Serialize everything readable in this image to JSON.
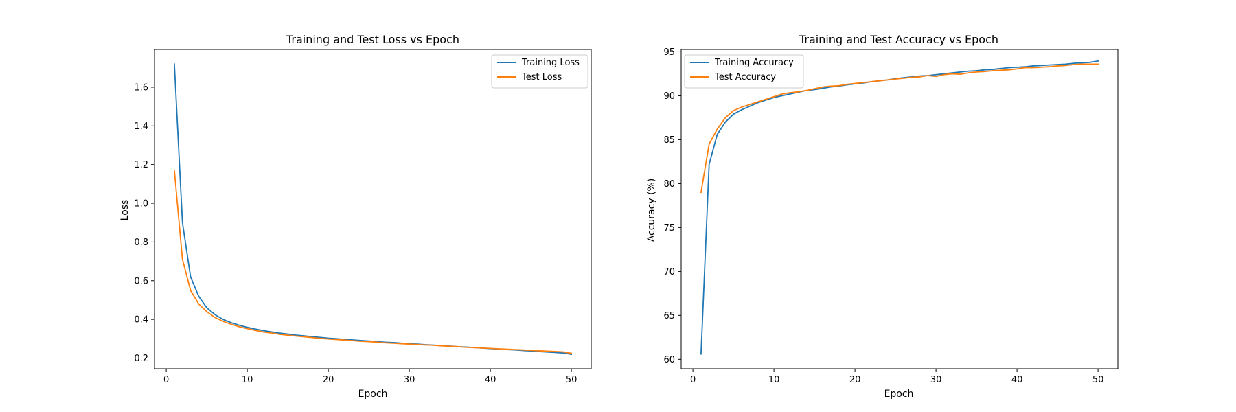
{
  "chart_data": [
    {
      "type": "line",
      "title": "Training and Test Loss vs Epoch",
      "xlabel": "Epoch",
      "ylabel": "Loss",
      "xlim": [
        -1.45,
        52.45
      ],
      "ylim": [
        0.145,
        1.795
      ],
      "xticks": [
        0,
        10,
        20,
        30,
        40,
        50
      ],
      "yticks": [
        0.2,
        0.4,
        0.6,
        0.8,
        1.0,
        1.2,
        1.4,
        1.6
      ],
      "ytick_labels": [
        "0.2",
        "0.4",
        "0.6",
        "0.8",
        "1.0",
        "1.2",
        "1.4",
        "1.6"
      ],
      "legend_loc": "upper right",
      "grid": false,
      "series": [
        {
          "name": "Training Loss",
          "color": "#1f77b4",
          "x": [
            1,
            2,
            3,
            4,
            5,
            6,
            7,
            8,
            9,
            10,
            11,
            12,
            13,
            14,
            15,
            16,
            17,
            18,
            19,
            20,
            21,
            22,
            23,
            24,
            25,
            26,
            27,
            28,
            29,
            30,
            31,
            32,
            33,
            34,
            35,
            36,
            37,
            38,
            39,
            40,
            41,
            42,
            43,
            44,
            45,
            46,
            47,
            48,
            49,
            50
          ],
          "y": [
            1.72,
            0.9,
            0.62,
            0.52,
            0.46,
            0.425,
            0.4,
            0.383,
            0.37,
            0.359,
            0.35,
            0.342,
            0.335,
            0.329,
            0.324,
            0.319,
            0.315,
            0.311,
            0.307,
            0.303,
            0.3,
            0.297,
            0.294,
            0.291,
            0.288,
            0.285,
            0.282,
            0.28,
            0.277,
            0.274,
            0.272,
            0.269,
            0.267,
            0.264,
            0.262,
            0.259,
            0.257,
            0.254,
            0.252,
            0.249,
            0.247,
            0.244,
            0.242,
            0.239,
            0.237,
            0.234,
            0.231,
            0.229,
            0.226,
            0.219
          ]
        },
        {
          "name": "Test Loss",
          "color": "#ff7f0e",
          "x": [
            1,
            2,
            3,
            4,
            5,
            6,
            7,
            8,
            9,
            10,
            11,
            12,
            13,
            14,
            15,
            16,
            17,
            18,
            19,
            20,
            21,
            22,
            23,
            24,
            25,
            26,
            27,
            28,
            29,
            30,
            31,
            32,
            33,
            34,
            35,
            36,
            37,
            38,
            39,
            40,
            41,
            42,
            43,
            44,
            45,
            46,
            47,
            48,
            49,
            50
          ],
          "y": [
            1.17,
            0.71,
            0.55,
            0.48,
            0.44,
            0.41,
            0.39,
            0.375,
            0.362,
            0.352,
            0.343,
            0.335,
            0.329,
            0.323,
            0.318,
            0.314,
            0.31,
            0.306,
            0.302,
            0.299,
            0.296,
            0.293,
            0.29,
            0.287,
            0.285,
            0.282,
            0.279,
            0.277,
            0.274,
            0.272,
            0.27,
            0.268,
            0.266,
            0.263,
            0.261,
            0.259,
            0.256,
            0.254,
            0.252,
            0.25,
            0.248,
            0.246,
            0.244,
            0.242,
            0.24,
            0.238,
            0.236,
            0.234,
            0.232,
            0.225
          ]
        }
      ]
    },
    {
      "type": "line",
      "title": "Training and Test Accuracy vs Epoch",
      "xlabel": "Epoch",
      "ylabel": "Accuracy (%)",
      "xlim": [
        -1.45,
        52.45
      ],
      "ylim": [
        58.93,
        95.27
      ],
      "xticks": [
        0,
        10,
        20,
        30,
        40,
        50
      ],
      "yticks": [
        60,
        65,
        70,
        75,
        80,
        85,
        90,
        95
      ],
      "ytick_labels": [
        "60",
        "65",
        "70",
        "75",
        "80",
        "85",
        "90",
        "95"
      ],
      "legend_loc": "upper left",
      "grid": false,
      "series": [
        {
          "name": "Training Accuracy",
          "color": "#1f77b4",
          "x": [
            1,
            2,
            3,
            4,
            5,
            6,
            7,
            8,
            9,
            10,
            11,
            12,
            13,
            14,
            15,
            16,
            17,
            18,
            19,
            20,
            21,
            22,
            23,
            24,
            25,
            26,
            27,
            28,
            29,
            30,
            31,
            32,
            33,
            34,
            35,
            36,
            37,
            38,
            39,
            40,
            41,
            42,
            43,
            44,
            45,
            46,
            47,
            48,
            49,
            50
          ],
          "y": [
            60.6,
            82.2,
            85.6,
            87.0,
            87.9,
            88.4,
            88.8,
            89.2,
            89.5,
            89.8,
            90.0,
            90.2,
            90.4,
            90.6,
            90.7,
            90.85,
            91.0,
            91.1,
            91.25,
            91.35,
            91.45,
            91.6,
            91.7,
            91.8,
            91.95,
            92.05,
            92.15,
            92.25,
            92.3,
            92.4,
            92.5,
            92.6,
            92.7,
            92.8,
            92.85,
            92.95,
            93.0,
            93.1,
            93.2,
            93.25,
            93.3,
            93.4,
            93.45,
            93.5,
            93.55,
            93.6,
            93.7,
            93.75,
            93.8,
            93.95
          ]
        },
        {
          "name": "Test Accuracy",
          "color": "#ff7f0e",
          "x": [
            1,
            2,
            3,
            4,
            5,
            6,
            7,
            8,
            9,
            10,
            11,
            12,
            13,
            14,
            15,
            16,
            17,
            18,
            19,
            20,
            21,
            22,
            23,
            24,
            25,
            26,
            27,
            28,
            29,
            30,
            31,
            32,
            33,
            34,
            35,
            36,
            37,
            38,
            39,
            40,
            41,
            42,
            43,
            44,
            45,
            46,
            47,
            48,
            49,
            50
          ],
          "y": [
            79.0,
            84.5,
            86.2,
            87.5,
            88.3,
            88.7,
            89.0,
            89.3,
            89.6,
            89.9,
            90.2,
            90.35,
            90.45,
            90.6,
            90.8,
            91.0,
            91.1,
            91.15,
            91.3,
            91.4,
            91.5,
            91.6,
            91.7,
            91.8,
            91.9,
            92.0,
            92.1,
            92.15,
            92.3,
            92.2,
            92.4,
            92.5,
            92.45,
            92.6,
            92.7,
            92.75,
            92.85,
            92.9,
            92.95,
            93.05,
            93.2,
            93.2,
            93.25,
            93.3,
            93.4,
            93.45,
            93.55,
            93.6,
            93.6,
            93.6
          ]
        }
      ]
    }
  ]
}
